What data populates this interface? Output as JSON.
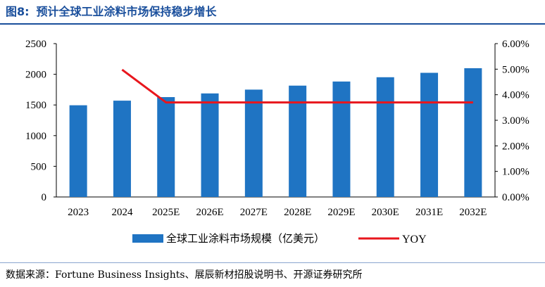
{
  "header": {
    "figure_number": "图8:",
    "title": "预计全球工业涂料市场保持稳步增长"
  },
  "footer": {
    "source": "数据来源：Fortune Business Insights、展辰新材招股说明书、开源证券研究所"
  },
  "colors": {
    "title": "#1a4f9c",
    "bar": "#1f74c3",
    "line": "#e8161d"
  },
  "chart_data": {
    "type": "bar",
    "categories": [
      "2023",
      "2024",
      "2025E",
      "2026E",
      "2027E",
      "2028E",
      "2029E",
      "2030E",
      "2031E",
      "2032E"
    ],
    "series": [
      {
        "name": "全球工业涂料市场规模（亿美元）",
        "type": "bar",
        "axis": "left",
        "values": [
          1495,
          1570,
          1628,
          1688,
          1750,
          1815,
          1882,
          1952,
          2024,
          2099
        ]
      },
      {
        "name": "YOY",
        "type": "line",
        "axis": "right",
        "values": [
          null,
          4.98,
          3.7,
          3.7,
          3.7,
          3.7,
          3.7,
          3.7,
          3.7,
          3.7
        ]
      }
    ],
    "y_left": {
      "min": 0,
      "max": 2500,
      "ticks": [
        "0",
        "500",
        "1000",
        "1500",
        "2000",
        "2500"
      ]
    },
    "y_right": {
      "min": 0,
      "max": 6,
      "ticks": [
        "0.00%",
        "1.00%",
        "2.00%",
        "3.00%",
        "4.00%",
        "5.00%",
        "6.00%"
      ]
    },
    "legend_position": "bottom",
    "grid": false
  }
}
